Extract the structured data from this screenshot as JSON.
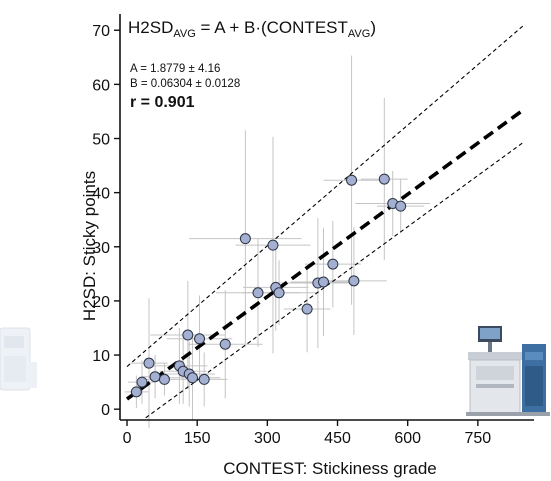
{
  "chart_data": {
    "type": "scatter",
    "title": "",
    "xlabel": "CONTEST: Stickiness grade",
    "ylabel": "H2SD: Sticky points",
    "xlim": [
      -15,
      870
    ],
    "ylim": [
      -2,
      73
    ],
    "xticks": [
      0,
      150,
      300,
      450,
      600,
      750
    ],
    "yticks": [
      0,
      10,
      20,
      30,
      40,
      50,
      60,
      70
    ],
    "grid": false,
    "equation": {
      "lhs_main": "H2SD",
      "lhs_sub": "AVG",
      "rhs_main": " = A + B·(CONTEST",
      "rhs_sub": "AVG",
      "close": ")"
    },
    "param_a": "A = 1.8779 ± 4.16",
    "param_b": "B = 0.06304 ± 0.0128",
    "r_label": "r = 0.901",
    "fit": {
      "intercept": 1.8779,
      "slope": 0.06304,
      "x_range": [
        0,
        850
      ],
      "band_offset_y": 6.0
    },
    "marker_color": "#a4b0d2",
    "errorbar_color": "#c4c4c4",
    "points": [
      {
        "x": 20,
        "y": 3.2,
        "xerr": 25,
        "yerr": 3
      },
      {
        "x": 32,
        "y": 5.0,
        "xerr": 30,
        "yerr": 4
      },
      {
        "x": 47,
        "y": 8.5,
        "xerr": 40,
        "yerr": 12
      },
      {
        "x": 60,
        "y": 6.0,
        "xerr": 30,
        "yerr": 4
      },
      {
        "x": 80,
        "y": 5.5,
        "xerr": 40,
        "yerr": 3
      },
      {
        "x": 112,
        "y": 8.0,
        "xerr": 60,
        "yerr": 7
      },
      {
        "x": 120,
        "y": 7.0,
        "xerr": 50,
        "yerr": 6
      },
      {
        "x": 130,
        "y": 13.7,
        "xerr": 80,
        "yerr": 10
      },
      {
        "x": 133,
        "y": 6.5,
        "xerr": 55,
        "yerr": 6
      },
      {
        "x": 140,
        "y": 5.8,
        "xerr": 60,
        "yerr": 8
      },
      {
        "x": 155,
        "y": 13.0,
        "xerr": 70,
        "yerr": 8
      },
      {
        "x": 165,
        "y": 5.5,
        "xerr": 50,
        "yerr": 5
      },
      {
        "x": 210,
        "y": 12.0,
        "xerr": 80,
        "yerr": 10
      },
      {
        "x": 253,
        "y": 31.5,
        "xerr": 120,
        "yerr": 20
      },
      {
        "x": 280,
        "y": 21.5,
        "xerr": 90,
        "yerr": 10
      },
      {
        "x": 312,
        "y": 30.3,
        "xerr": 80,
        "yerr": 20
      },
      {
        "x": 318,
        "y": 22.5,
        "xerr": 70,
        "yerr": 8
      },
      {
        "x": 325,
        "y": 21.5,
        "xerr": 80,
        "yerr": 6
      },
      {
        "x": 385,
        "y": 18.5,
        "xerr": 50,
        "yerr": 8
      },
      {
        "x": 408,
        "y": 23.3,
        "xerr": 80,
        "yerr": 12
      },
      {
        "x": 420,
        "y": 23.5,
        "xerr": 70,
        "yerr": 10
      },
      {
        "x": 440,
        "y": 26.8,
        "xerr": 60,
        "yerr": 8
      },
      {
        "x": 480,
        "y": 42.3,
        "xerr": 60,
        "yerr": 23
      },
      {
        "x": 485,
        "y": 23.7,
        "xerr": 70,
        "yerr": 10
      },
      {
        "x": 550,
        "y": 42.5,
        "xerr": 50,
        "yerr": 15
      },
      {
        "x": 568,
        "y": 38.0,
        "xerr": 80,
        "yerr": 6
      },
      {
        "x": 585,
        "y": 37.5,
        "xerr": 50,
        "yerr": 5
      }
    ]
  }
}
